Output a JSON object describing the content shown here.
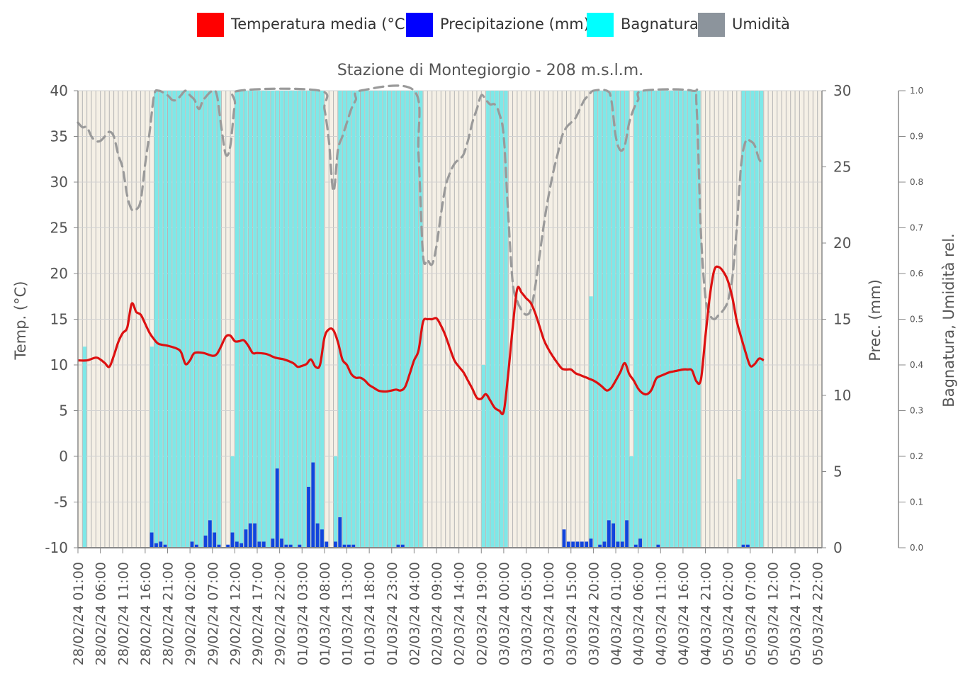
{
  "legend": [
    {
      "label": "Temperatura media (°C)",
      "color": "#ff0000"
    },
    {
      "label": "Precipitazione (mm)",
      "color": "#0000ff"
    },
    {
      "label": "Bagnatura",
      "color": "#00ffff"
    },
    {
      "label": "Umidità",
      "color": "#8c949c"
    }
  ],
  "chart_data": {
    "type": "line",
    "title": "Stazione di Montegiorgio - 208 m.s.l.m.",
    "colors": {
      "temperature": "#dd1111",
      "precipitation": "#1144dd",
      "wetness": "#7ee8e8",
      "humidity": "#9a9a9a",
      "grid": "#b5b5b5"
    },
    "hours_count": 166,
    "axes": {
      "temp": {
        "label": "Temp. (°C)",
        "min": -10,
        "max": 40,
        "ticks": [
          -10,
          -5,
          0,
          5,
          10,
          15,
          20,
          25,
          30,
          35,
          40
        ]
      },
      "prec": {
        "label": "Prec. (mm)",
        "min": 0,
        "max": 30,
        "ticks": [
          0,
          5,
          10,
          15,
          20,
          25,
          30
        ]
      },
      "rel": {
        "label": "Bagnatura, Umidità rel.",
        "min": 0,
        "max": 1,
        "ticks": [
          "0.0",
          "0.1",
          "0.2",
          "0.3",
          "0.4",
          "0.5",
          "0.6",
          "0.7",
          "0.8",
          "0.9",
          "1.0"
        ]
      }
    },
    "x_tick_labels": [
      "28/02/24 01:00",
      "28/02/24 06:00",
      "28/02/24 11:00",
      "28/02/24 16:00",
      "28/02/24 21:00",
      "29/02/24 02:00",
      "29/02/24 07:00",
      "29/02/24 12:00",
      "29/02/24 17:00",
      "29/02/24 22:00",
      "01/03/24 03:00",
      "01/03/24 08:00",
      "01/03/24 13:00",
      "01/03/24 18:00",
      "01/03/24 23:00",
      "02/03/24 04:00",
      "02/03/24 09:00",
      "02/03/24 14:00",
      "02/03/24 19:00",
      "03/03/24 00:00",
      "03/03/24 05:00",
      "03/03/24 10:00",
      "03/03/24 15:00",
      "03/03/24 20:00",
      "04/03/24 01:00",
      "04/03/24 06:00",
      "04/03/24 11:00",
      "04/03/24 16:00",
      "04/03/24 21:00",
      "05/03/24 02:00",
      "05/03/24 07:00",
      "05/03/24 12:00",
      "05/03/24 17:00",
      "05/03/24 22:00"
    ],
    "x_tick_every_hours": 5,
    "temperature": [
      [
        0,
        10.5
      ],
      [
        2,
        10.5
      ],
      [
        4,
        10.8
      ],
      [
        5,
        10.6
      ],
      [
        6,
        10.2
      ],
      [
        7,
        9.8
      ],
      [
        8,
        11
      ],
      [
        9,
        12.5
      ],
      [
        10,
        13.5
      ],
      [
        11,
        14.1
      ],
      [
        12,
        16.7
      ],
      [
        13,
        15.8
      ],
      [
        14,
        15.5
      ],
      [
        15,
        14.5
      ],
      [
        16,
        13.5
      ],
      [
        17,
        12.8
      ],
      [
        18,
        12.3
      ],
      [
        20,
        12.1
      ],
      [
        22,
        11.8
      ],
      [
        23,
        11.4
      ],
      [
        24,
        10.1
      ],
      [
        25,
        10.5
      ],
      [
        26,
        11.3
      ],
      [
        28,
        11.3
      ],
      [
        30,
        11
      ],
      [
        31,
        11.2
      ],
      [
        32,
        12.1
      ],
      [
        33,
        13.1
      ],
      [
        34,
        13.2
      ],
      [
        35,
        12.6
      ],
      [
        36,
        12.6
      ],
      [
        37,
        12.7
      ],
      [
        38,
        12.1
      ],
      [
        39,
        11.3
      ],
      [
        40,
        11.3
      ],
      [
        42,
        11.2
      ],
      [
        44,
        10.8
      ],
      [
        46,
        10.6
      ],
      [
        48,
        10.2
      ],
      [
        49,
        9.8
      ],
      [
        50,
        9.9
      ],
      [
        51,
        10.1
      ],
      [
        52,
        10.6
      ],
      [
        53,
        9.8
      ],
      [
        54,
        10
      ],
      [
        55,
        13
      ],
      [
        56,
        13.9
      ],
      [
        57,
        13.8
      ],
      [
        58,
        12.5
      ],
      [
        59,
        10.6
      ],
      [
        60,
        10
      ],
      [
        61,
        9
      ],
      [
        62,
        8.6
      ],
      [
        63,
        8.6
      ],
      [
        64,
        8.3
      ],
      [
        65,
        7.8
      ],
      [
        66,
        7.5
      ],
      [
        67,
        7.2
      ],
      [
        68,
        7.1
      ],
      [
        69,
        7.1
      ],
      [
        70,
        7.2
      ],
      [
        71,
        7.3
      ],
      [
        72,
        7.2
      ],
      [
        73,
        7.6
      ],
      [
        74,
        9
      ],
      [
        75,
        10.5
      ],
      [
        76,
        11.6
      ],
      [
        77,
        14.7
      ],
      [
        78,
        15
      ],
      [
        79,
        15
      ],
      [
        80,
        15.1
      ],
      [
        81,
        14.3
      ],
      [
        82,
        13.2
      ],
      [
        83,
        11.8
      ],
      [
        84,
        10.5
      ],
      [
        85,
        9.8
      ],
      [
        86,
        9.2
      ],
      [
        87,
        8.3
      ],
      [
        88,
        7.4
      ],
      [
        89,
        6.4
      ],
      [
        90,
        6.3
      ],
      [
        91,
        6.8
      ],
      [
        92,
        6.1
      ],
      [
        93,
        5.3
      ],
      [
        94,
        5
      ],
      [
        95,
        4.9
      ],
      [
        96,
        9
      ],
      [
        97,
        14.1
      ],
      [
        98,
        18.3
      ],
      [
        99,
        17.9
      ],
      [
        100,
        17.3
      ],
      [
        101,
        16.8
      ],
      [
        102,
        15.7
      ],
      [
        103,
        14.2
      ],
      [
        104,
        12.7
      ],
      [
        105,
        11.7
      ],
      [
        106,
        10.9
      ],
      [
        107,
        10.2
      ],
      [
        108,
        9.6
      ],
      [
        109,
        9.5
      ],
      [
        110,
        9.5
      ],
      [
        111,
        9.1
      ],
      [
        112,
        8.9
      ],
      [
        113,
        8.7
      ],
      [
        114,
        8.5
      ],
      [
        115,
        8.3
      ],
      [
        116,
        8
      ],
      [
        117,
        7.6
      ],
      [
        118,
        7.2
      ],
      [
        119,
        7.5
      ],
      [
        120,
        8.3
      ],
      [
        121,
        9.2
      ],
      [
        122,
        10.2
      ],
      [
        123,
        9
      ],
      [
        124,
        8.3
      ],
      [
        125,
        7.4
      ],
      [
        126,
        6.9
      ],
      [
        127,
        6.8
      ],
      [
        128,
        7.3
      ],
      [
        129,
        8.5
      ],
      [
        130,
        8.8
      ],
      [
        131,
        9
      ],
      [
        132,
        9.2
      ],
      [
        133,
        9.3
      ],
      [
        134,
        9.4
      ],
      [
        135,
        9.5
      ],
      [
        136,
        9.5
      ],
      [
        137,
        9.4
      ],
      [
        138,
        8.2
      ],
      [
        139,
        8.4
      ],
      [
        140,
        13.1
      ],
      [
        141,
        17.6
      ],
      [
        142,
        20.4
      ],
      [
        143,
        20.7
      ],
      [
        144,
        20.2
      ],
      [
        145,
        19.2
      ],
      [
        146,
        17.4
      ],
      [
        147,
        14.8
      ],
      [
        148,
        13
      ],
      [
        149,
        11.3
      ],
      [
        150,
        9.9
      ],
      [
        151,
        10.1
      ],
      [
        152,
        10.7
      ],
      [
        153,
        10.5
      ]
    ],
    "humidity": [
      [
        0,
        0.93
      ],
      [
        1,
        0.92
      ],
      [
        2,
        0.92
      ],
      [
        3,
        0.9
      ],
      [
        4,
        0.89
      ],
      [
        5,
        0.89
      ],
      [
        6,
        0.9
      ],
      [
        7,
        0.91
      ],
      [
        8,
        0.9
      ],
      [
        9,
        0.86
      ],
      [
        10,
        0.83
      ],
      [
        11,
        0.77
      ],
      [
        12,
        0.74
      ],
      [
        13,
        0.74
      ],
      [
        14,
        0.76
      ],
      [
        15,
        0.84
      ],
      [
        16,
        0.91
      ],
      [
        17,
        0.99
      ],
      [
        18,
        1
      ],
      [
        20,
        0.99
      ],
      [
        21,
        0.98
      ],
      [
        22,
        0.98
      ],
      [
        23,
        0.99
      ],
      [
        24,
        1
      ],
      [
        25,
        0.99
      ],
      [
        26,
        0.98
      ],
      [
        27,
        0.96
      ],
      [
        28,
        0.98
      ],
      [
        30,
        1
      ],
      [
        31,
        0.99
      ],
      [
        32,
        0.92
      ],
      [
        33,
        0.86
      ],
      [
        34,
        0.88
      ],
      [
        35,
        0.97
      ],
      [
        36,
        1
      ],
      [
        54,
        1
      ],
      [
        55,
        0.96
      ],
      [
        56,
        0.89
      ],
      [
        57,
        0.78
      ],
      [
        58,
        0.87
      ],
      [
        59,
        0.9
      ],
      [
        60,
        0.93
      ],
      [
        61,
        0.96
      ],
      [
        62,
        0.98
      ],
      [
        63,
        1
      ],
      [
        75,
        1
      ],
      [
        76,
        0.86
      ],
      [
        77,
        0.64
      ],
      [
        78,
        0.63
      ],
      [
        79,
        0.62
      ],
      [
        80,
        0.66
      ],
      [
        81,
        0.73
      ],
      [
        82,
        0.79
      ],
      [
        83,
        0.82
      ],
      [
        84,
        0.84
      ],
      [
        85,
        0.85
      ],
      [
        86,
        0.86
      ],
      [
        87,
        0.89
      ],
      [
        88,
        0.93
      ],
      [
        89,
        0.96
      ],
      [
        90,
        0.99
      ],
      [
        91,
        0.98
      ],
      [
        92,
        0.97
      ],
      [
        93,
        0.97
      ],
      [
        94,
        0.95
      ],
      [
        95,
        0.9
      ],
      [
        96,
        0.73
      ],
      [
        97,
        0.58
      ],
      [
        98,
        0.54
      ],
      [
        99,
        0.52
      ],
      [
        100,
        0.51
      ],
      [
        101,
        0.52
      ],
      [
        102,
        0.57
      ],
      [
        103,
        0.64
      ],
      [
        104,
        0.71
      ],
      [
        105,
        0.77
      ],
      [
        106,
        0.82
      ],
      [
        107,
        0.86
      ],
      [
        108,
        0.9
      ],
      [
        109,
        0.92
      ],
      [
        110,
        0.93
      ],
      [
        111,
        0.94
      ],
      [
        112,
        0.96
      ],
      [
        113,
        0.98
      ],
      [
        114,
        0.99
      ],
      [
        115,
        1
      ],
      [
        118,
        1
      ],
      [
        119,
        0.98
      ],
      [
        120,
        0.9
      ],
      [
        121,
        0.87
      ],
      [
        122,
        0.88
      ],
      [
        123,
        0.93
      ],
      [
        124,
        0.96
      ],
      [
        125,
        0.98
      ],
      [
        126,
        1
      ],
      [
        137,
        1
      ],
      [
        138,
        0.97
      ],
      [
        139,
        0.69
      ],
      [
        140,
        0.55
      ],
      [
        141,
        0.51
      ],
      [
        142,
        0.5
      ],
      [
        143,
        0.51
      ],
      [
        144,
        0.52
      ],
      [
        145,
        0.54
      ],
      [
        146,
        0.59
      ],
      [
        147,
        0.7
      ],
      [
        148,
        0.84
      ],
      [
        149,
        0.89
      ],
      [
        150,
        0.89
      ],
      [
        151,
        0.88
      ],
      [
        152,
        0.85
      ],
      [
        153,
        0.84
      ]
    ],
    "wetness_intervals": [
      [
        1,
        2,
        0.3,
        0.44
      ],
      [
        16,
        32,
        1.0,
        0.44
      ],
      [
        34,
        55,
        1.0,
        0.2
      ],
      [
        57,
        77,
        1.0,
        0.2
      ],
      [
        90,
        96,
        1.0,
        0.4
      ],
      [
        114,
        123,
        1.0,
        0.55
      ],
      [
        123,
        139,
        1.0,
        0.2
      ],
      [
        147,
        153,
        1.0,
        0.15
      ]
    ],
    "precipitation": [
      [
        16,
        1.0
      ],
      [
        17,
        0.3
      ],
      [
        18,
        0.4
      ],
      [
        19,
        0.2
      ],
      [
        25,
        0.4
      ],
      [
        26,
        0.2
      ],
      [
        28,
        0.8
      ],
      [
        29,
        1.8
      ],
      [
        30,
        1.0
      ],
      [
        31,
        0.2
      ],
      [
        33,
        0.2
      ],
      [
        34,
        1.0
      ],
      [
        35,
        0.4
      ],
      [
        36,
        0.3
      ],
      [
        37,
        1.2
      ],
      [
        38,
        1.6
      ],
      [
        39,
        1.6
      ],
      [
        40,
        0.4
      ],
      [
        41,
        0.4
      ],
      [
        43,
        0.6
      ],
      [
        44,
        5.2
      ],
      [
        45,
        0.6
      ],
      [
        46,
        0.2
      ],
      [
        47,
        0.2
      ],
      [
        49,
        0.2
      ],
      [
        51,
        4.0
      ],
      [
        52,
        5.6
      ],
      [
        53,
        1.6
      ],
      [
        54,
        1.2
      ],
      [
        55,
        0.4
      ],
      [
        57,
        0.4
      ],
      [
        58,
        2.0
      ],
      [
        59,
        0.2
      ],
      [
        60,
        0.2
      ],
      [
        61,
        0.2
      ],
      [
        71,
        0.2
      ],
      [
        72,
        0.2
      ],
      [
        108,
        1.2
      ],
      [
        109,
        0.4
      ],
      [
        110,
        0.4
      ],
      [
        111,
        0.4
      ],
      [
        112,
        0.4
      ],
      [
        113,
        0.4
      ],
      [
        114,
        0.6
      ],
      [
        116,
        0.2
      ],
      [
        117,
        0.4
      ],
      [
        118,
        1.8
      ],
      [
        119,
        1.6
      ],
      [
        120,
        0.4
      ],
      [
        121,
        0.4
      ],
      [
        122,
        1.8
      ],
      [
        124,
        0.2
      ],
      [
        125,
        0.6
      ],
      [
        129,
        0.2
      ],
      [
        148,
        0.2
      ],
      [
        149,
        0.2
      ]
    ]
  }
}
